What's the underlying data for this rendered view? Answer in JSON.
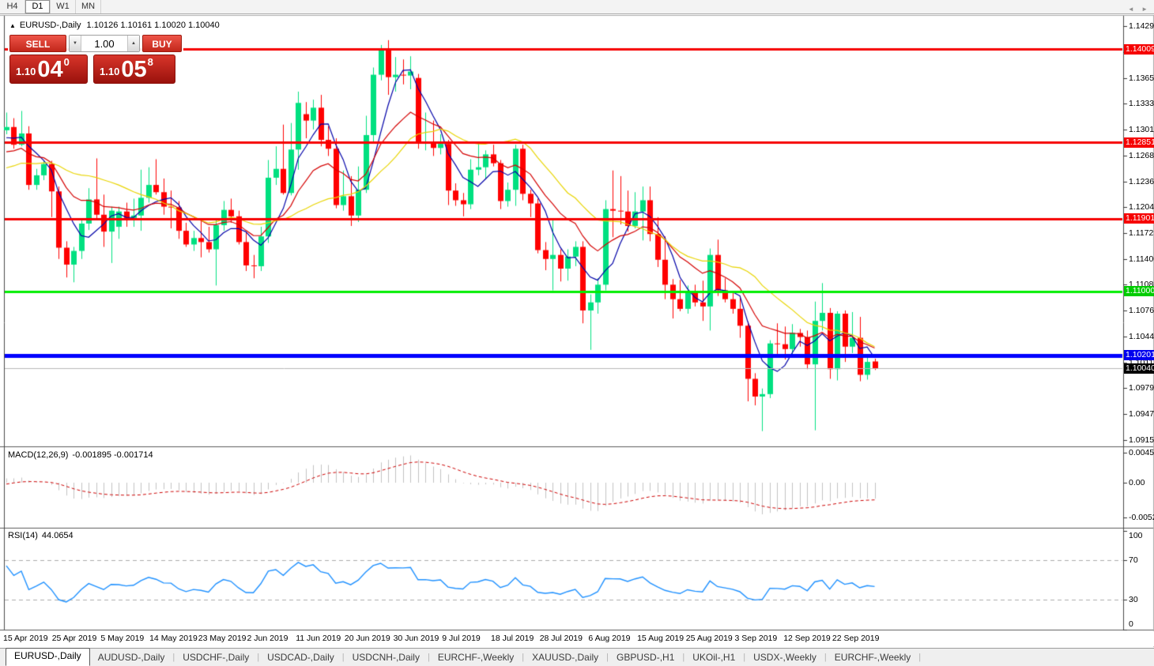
{
  "toolbar": {
    "timeframes": [
      "H4",
      "D1",
      "W1",
      "MN"
    ],
    "active": "D1"
  },
  "chart_header": {
    "collapse_marker": "▲",
    "symbol_timeframe": "EURUSD-,Daily",
    "ohlc_text": "1.10126 1.10161 1.10020 1.10040"
  },
  "one_click": {
    "sell_label": "SELL",
    "buy_label": "BUY",
    "volume": "1.00",
    "down_arrow": "▼",
    "up_arrow": "▲",
    "bid": {
      "prefix": "1.10",
      "big": "04",
      "sup": "0"
    },
    "ask": {
      "prefix": "1.10",
      "big": "05",
      "sup": "8"
    }
  },
  "indicators": {
    "macd": {
      "name": "MACD(12,26,9)",
      "values": "-0.001895 -0.001714"
    },
    "rsi": {
      "name": "RSI(14)",
      "value": "44.0654"
    }
  },
  "tabs": {
    "items": [
      "EURUSD-,Daily",
      "AUDUSD-,Daily",
      "USDCHF-,Daily",
      "USDCAD-,Daily",
      "USDCNH-,Daily",
      "EURCHF-,Weekly",
      "XAUUSD-,Daily",
      "GBPUSD-,H1",
      "UKOil-,H1",
      "USDX-,Weekly",
      "EURCHF-,Weekly"
    ],
    "active_index": 0,
    "scroll_left": "◄",
    "scroll_right": "►"
  },
  "chart_data": {
    "type": "candlestick",
    "symbol": "EURUSD-",
    "period": "Daily",
    "title": "EURUSD-,Daily",
    "current_bar": {
      "open": 1.10126,
      "high": 1.10161,
      "low": 1.1002,
      "close": 1.1004
    },
    "price_axis": {
      "top_price": 1.14344,
      "bottom_price": 1.0909,
      "ticks": [
        "1.14295",
        "1.13975",
        "1.13650",
        "1.13330",
        "1.13010",
        "1.12685",
        "1.12365",
        "1.12045",
        "1.11725",
        "1.11400",
        "1.11080",
        "1.10760",
        "1.10440",
        "1.10115",
        "1.09795",
        "1.09475",
        "1.09150"
      ]
    },
    "x_labels": [
      "15 Apr 2019",
      "25 Apr 2019",
      "5 May 2019",
      "14 May 2019",
      "23 May 2019",
      "2 Jun 2019",
      "11 Jun 2019",
      "20 Jun 2019",
      "30 Jun 2019",
      "9 Jul 2019",
      "18 Jul 2019",
      "28 Jul 2019",
      "6 Aug 2019",
      "15 Aug 2019",
      "25 Aug 2019",
      "3 Sep 2019",
      "12 Sep 2019",
      "22 Sep 2019"
    ],
    "levels": [
      {
        "label": "1.14009",
        "price": 1.14009,
        "color": "#f60000",
        "width": 3,
        "badge": "#f60000"
      },
      {
        "label": "1.12851",
        "price": 1.12851,
        "color": "#f60000",
        "width": 3,
        "badge": "#f60000"
      },
      {
        "label": "1.11901",
        "price": 1.11901,
        "color": "#f60000",
        "width": 3,
        "badge": "#f60000"
      },
      {
        "label": "1.11000",
        "price": 1.11,
        "color": "#00ee00",
        "width": 3,
        "badge": "#00cc00"
      },
      {
        "label": "1.10201",
        "price": 1.10201,
        "color": "#0000ff",
        "width": 5,
        "badge": "#0000ee"
      },
      {
        "label": "1.10040",
        "price": 1.1004,
        "color": "#b8b8b8",
        "width": 1,
        "badge": "#000000"
      }
    ],
    "colors": {
      "bull": "#00e080",
      "bear": "#ff0000",
      "ma_fast": "#0000a8",
      "ma_mid": "#d40000",
      "ma_slow": "#e8d400",
      "macd_bar": "#c2c2c2",
      "macd_signal": "#cc0000",
      "rsi_line": "#1e90ff",
      "panel_dash": "#ababab",
      "axis_line": "#4a4a4a"
    },
    "moving_averages": [
      {
        "period": 5,
        "method": "sma",
        "color_key": "ma_fast"
      },
      {
        "period": 13,
        "method": "ema",
        "color_key": "ma_mid"
      },
      {
        "period": 21,
        "method": "sma",
        "color_key": "ma_slow"
      }
    ],
    "macd_panel": {
      "fast": 12,
      "slow": 26,
      "signal": 9,
      "ticks": [
        {
          "label": "0.004536",
          "value": 0.004536
        },
        {
          "label": "0.00",
          "value": 0
        },
        {
          "label": "-0.005205",
          "value": -0.005205
        }
      ]
    },
    "rsi_panel": {
      "period": 14,
      "ticks": [
        {
          "label": "100",
          "value": 100
        },
        {
          "label": "70",
          "value": 70
        },
        {
          "label": "30",
          "value": 30
        },
        {
          "label": "0",
          "value": 0
        }
      ],
      "level_lines": [
        70,
        30
      ]
    },
    "prehistory_closes": [
      1.137,
      1.136,
      1.1345,
      1.135,
      1.1365,
      1.134,
      1.132,
      1.133,
      1.1345,
      1.1355,
      1.134,
      1.1325,
      1.131,
      1.132,
      1.1335,
      1.133,
      1.1315,
      1.13,
      1.131,
      1.132,
      1.1305,
      1.1295,
      1.13,
      1.131,
      1.1295,
      1.1285,
      1.1275,
      1.1265,
      1.128,
      1.127,
      1.126,
      1.1275,
      1.1285,
      1.127,
      1.1255,
      1.1265,
      1.1275,
      1.127,
      1.1268,
      1.124,
      1.123,
      1.1225,
      1.124,
      1.125,
      1.1235,
      1.1225,
      1.123,
      1.1245,
      1.1238,
      1.1228,
      1.1232,
      1.124,
      1.1236,
      1.1262,
      1.127,
      1.1278,
      1.1285,
      1.129,
      1.1288,
      1.1287
    ],
    "candles": [
      [
        1.13,
        1.1322,
        1.1295,
        1.1304
      ],
      [
        1.1304,
        1.1315,
        1.1277,
        1.1282
      ],
      [
        1.1282,
        1.1324,
        1.128,
        1.1296
      ],
      [
        1.1296,
        1.1305,
        1.1226,
        1.1232
      ],
      [
        1.1232,
        1.1252,
        1.1226,
        1.1244
      ],
      [
        1.1244,
        1.1262,
        1.1238,
        1.1258
      ],
      [
        1.1258,
        1.1262,
        1.1192,
        1.1224
      ],
      [
        1.1224,
        1.123,
        1.114,
        1.1154
      ],
      [
        1.1154,
        1.1162,
        1.1117,
        1.1133
      ],
      [
        1.1133,
        1.1155,
        1.1111,
        1.115
      ],
      [
        1.115,
        1.119,
        1.114,
        1.1184
      ],
      [
        1.1184,
        1.1228,
        1.1176,
        1.1214
      ],
      [
        1.1214,
        1.1265,
        1.119,
        1.1195
      ],
      [
        1.1195,
        1.122,
        1.1155,
        1.1174
      ],
      [
        1.1174,
        1.1205,
        1.1135,
        1.12
      ],
      [
        1.118,
        1.1205,
        1.1165,
        1.1199
      ],
      [
        1.1199,
        1.121,
        1.118,
        1.1191
      ],
      [
        1.1191,
        1.1215,
        1.118,
        1.1194
      ],
      [
        1.1194,
        1.1251,
        1.1175,
        1.1216
      ],
      [
        1.1216,
        1.1254,
        1.121,
        1.1232
      ],
      [
        1.1232,
        1.1264,
        1.122,
        1.1223
      ],
      [
        1.1223,
        1.124,
        1.1195,
        1.1205
      ],
      [
        1.1205,
        1.1225,
        1.1178,
        1.1204
      ],
      [
        1.1204,
        1.1212,
        1.1165,
        1.1175
      ],
      [
        1.1175,
        1.1185,
        1.1155,
        1.1158
      ],
      [
        1.1158,
        1.1175,
        1.115,
        1.1166
      ],
      [
        1.1166,
        1.1188,
        1.1142,
        1.1161
      ],
      [
        1.1161,
        1.118,
        1.1148,
        1.1152
      ],
      [
        1.1152,
        1.1188,
        1.1107,
        1.1182
      ],
      [
        1.1182,
        1.1212,
        1.1175,
        1.1201
      ],
      [
        1.1201,
        1.1215,
        1.1185,
        1.1193
      ],
      [
        1.1193,
        1.12,
        1.1158,
        1.1161
      ],
      [
        1.1161,
        1.1173,
        1.1125,
        1.1132
      ],
      [
        1.1132,
        1.1145,
        1.1116,
        1.1131
      ],
      [
        1.1131,
        1.118,
        1.1125,
        1.1168
      ],
      [
        1.1168,
        1.1263,
        1.116,
        1.1241
      ],
      [
        1.1241,
        1.128,
        1.1232,
        1.1252
      ],
      [
        1.1252,
        1.1307,
        1.122,
        1.1222
      ],
      [
        1.1222,
        1.1309,
        1.1219,
        1.1276
      ],
      [
        1.1276,
        1.1348,
        1.1251,
        1.1334
      ],
      [
        1.132,
        1.1335,
        1.129,
        1.1312
      ],
      [
        1.1312,
        1.1338,
        1.1301,
        1.1328
      ],
      [
        1.1328,
        1.1344,
        1.128,
        1.1288
      ],
      [
        1.1288,
        1.1305,
        1.1268,
        1.1277
      ],
      [
        1.1277,
        1.129,
        1.1203,
        1.1207
      ],
      [
        1.1207,
        1.125,
        1.12,
        1.1218
      ],
      [
        1.1218,
        1.1243,
        1.1181,
        1.1194
      ],
      [
        1.1194,
        1.1255,
        1.1186,
        1.1226
      ],
      [
        1.1226,
        1.1318,
        1.1222,
        1.1294
      ],
      [
        1.1294,
        1.1378,
        1.1285,
        1.1369
      ],
      [
        1.1369,
        1.1406,
        1.1362,
        1.14
      ],
      [
        1.14,
        1.1412,
        1.1344,
        1.1366
      ],
      [
        1.1366,
        1.1391,
        1.1348,
        1.1369
      ],
      [
        1.1369,
        1.1388,
        1.1357,
        1.1368
      ],
      [
        1.1368,
        1.1392,
        1.1351,
        1.1373
      ],
      [
        1.1365,
        1.137,
        1.1277,
        1.1285
      ],
      [
        1.1285,
        1.1322,
        1.1275,
        1.1286
      ],
      [
        1.1286,
        1.1312,
        1.1268,
        1.1278
      ],
      [
        1.1278,
        1.1295,
        1.127,
        1.1283
      ],
      [
        1.1283,
        1.1288,
        1.1207,
        1.1225
      ],
      [
        1.1225,
        1.1234,
        1.1206,
        1.1213
      ],
      [
        1.1213,
        1.1222,
        1.1193,
        1.1208
      ],
      [
        1.1208,
        1.1264,
        1.1202,
        1.1251
      ],
      [
        1.1251,
        1.1285,
        1.1244,
        1.1254
      ],
      [
        1.1254,
        1.1275,
        1.1239,
        1.127
      ],
      [
        1.127,
        1.1282,
        1.1255,
        1.1259
      ],
      [
        1.1259,
        1.1263,
        1.1202,
        1.1212
      ],
      [
        1.1212,
        1.1235,
        1.1205,
        1.1226
      ],
      [
        1.1226,
        1.1282,
        1.1206,
        1.1277
      ],
      [
        1.1277,
        1.1282,
        1.1213,
        1.1221
      ],
      [
        1.1221,
        1.1226,
        1.1192,
        1.1209
      ],
      [
        1.1209,
        1.1215,
        1.1147,
        1.1151
      ],
      [
        1.1151,
        1.1161,
        1.1126,
        1.114
      ],
      [
        1.114,
        1.1188,
        1.1101,
        1.1145
      ],
      [
        1.1145,
        1.1152,
        1.1112,
        1.1128
      ],
      [
        1.1128,
        1.1152,
        1.1113,
        1.1143
      ],
      [
        1.1143,
        1.1162,
        1.1131,
        1.1155
      ],
      [
        1.1155,
        1.1162,
        1.106,
        1.1076
      ],
      [
        1.1076,
        1.1096,
        1.1027,
        1.1086
      ],
      [
        1.1086,
        1.1116,
        1.1072,
        1.1108
      ],
      [
        1.1108,
        1.1213,
        1.1101,
        1.1202
      ],
      [
        1.1202,
        1.125,
        1.1167,
        1.12
      ],
      [
        1.12,
        1.1243,
        1.1183,
        1.1199
      ],
      [
        1.1199,
        1.1225,
        1.1174,
        1.1181
      ],
      [
        1.1181,
        1.1223,
        1.1178,
        1.1199
      ],
      [
        1.1199,
        1.123,
        1.1163,
        1.1213
      ],
      [
        1.1213,
        1.123,
        1.1162,
        1.1171
      ],
      [
        1.1171,
        1.1192,
        1.113,
        1.1139
      ],
      [
        1.1139,
        1.1168,
        1.109,
        1.1108
      ],
      [
        1.1108,
        1.1115,
        1.1066,
        1.109
      ],
      [
        1.109,
        1.1114,
        1.1075,
        1.1078
      ],
      [
        1.1078,
        1.1107,
        1.1072,
        1.1099
      ],
      [
        1.1099,
        1.1108,
        1.1081,
        1.1086
      ],
      [
        1.1086,
        1.1113,
        1.1063,
        1.1081
      ],
      [
        1.1081,
        1.1153,
        1.1051,
        1.1145
      ],
      [
        1.1145,
        1.1164,
        1.1094,
        1.1101
      ],
      [
        1.1101,
        1.1116,
        1.1086,
        1.109
      ],
      [
        1.109,
        1.1098,
        1.1072,
        1.1078
      ],
      [
        1.1078,
        1.1094,
        1.1042,
        1.1057
      ],
      [
        1.1057,
        1.1062,
        1.0963,
        1.0991
      ],
      [
        1.0991,
        1.0998,
        1.0958,
        1.0969
      ],
      [
        1.0969,
        1.0979,
        1.0926,
        1.0972
      ],
      [
        1.0972,
        1.1039,
        1.0967,
        1.1035
      ],
      [
        1.1035,
        1.106,
        1.1022,
        1.1034
      ],
      [
        1.1034,
        1.1056,
        1.1015,
        1.1028
      ],
      [
        1.1028,
        1.1059,
        1.1022,
        1.1048
      ],
      [
        1.1048,
        1.1053,
        1.1031,
        1.1043
      ],
      [
        1.1043,
        1.1051,
        1.1003,
        1.1009
      ],
      [
        1.1009,
        1.1087,
        1.0927,
        1.1063
      ],
      [
        1.1063,
        1.111,
        1.1051,
        1.1073
      ],
      [
        1.1073,
        1.1079,
        1.0991,
        1.1003
      ],
      [
        1.1003,
        1.1075,
        1.0989,
        1.1072
      ],
      [
        1.1072,
        1.1076,
        1.1012,
        1.1031
      ],
      [
        1.1031,
        1.1074,
        1.1023,
        1.1042
      ],
      [
        1.1042,
        1.1068,
        1.0988,
        1.0996
      ],
      [
        1.0996,
        1.1018,
        1.099,
        1.1012
      ],
      [
        1.10126,
        1.10161,
        1.1002,
        1.1004
      ]
    ]
  }
}
